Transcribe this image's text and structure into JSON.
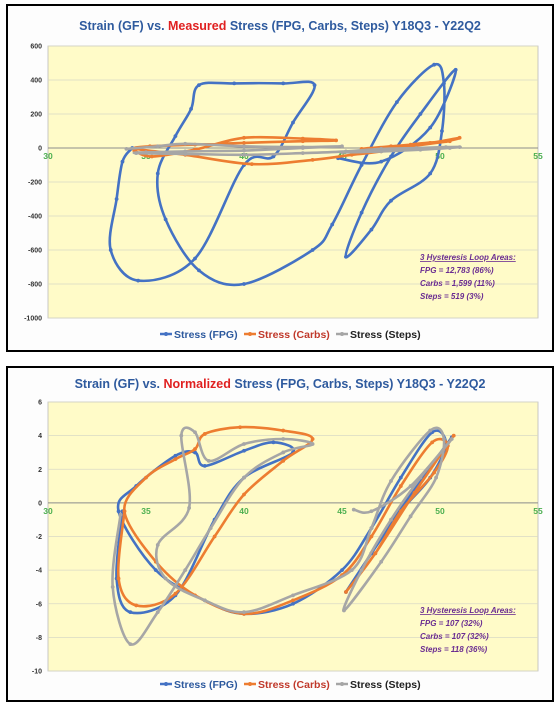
{
  "chart_data": [
    {
      "type": "line",
      "title_parts": [
        "Strain (GF) vs. ",
        "Measured",
        " Stress (FPG, Carbs, Steps)  Y18Q3 - Y22Q2"
      ],
      "xlim": [
        30,
        55
      ],
      "ylim": [
        -1000,
        600
      ],
      "x_ticks": [
        30,
        35,
        40,
        45,
        50,
        55
      ],
      "y_ticks": [
        600,
        400,
        200,
        0,
        -200,
        -400,
        -600,
        -800,
        -1000
      ],
      "plot_background": "#fffbc8",
      "grid": true,
      "legend_position": "bottom",
      "series": [
        {
          "name": "Stress (FPG)",
          "color": "#4472c4",
          "points": [
            [
              34.3,
              0
            ],
            [
              33.8,
              -80
            ],
            [
              33.5,
              -300
            ],
            [
              33.2,
              -600
            ],
            [
              34.6,
              -780
            ],
            [
              37.5,
              -650
            ],
            [
              40,
              -100
            ],
            [
              41.5,
              -50
            ],
            [
              42.5,
              150
            ],
            [
              43.6,
              370
            ],
            [
              42,
              380
            ],
            [
              39.5,
              380
            ],
            [
              37.7,
              370
            ],
            [
              37.3,
              230
            ],
            [
              36.5,
              70
            ],
            [
              35.6,
              -150
            ],
            [
              36,
              -420
            ],
            [
              37.7,
              -720
            ],
            [
              40,
              -800
            ],
            [
              43.5,
              -600
            ],
            [
              44.5,
              -450
            ],
            [
              46,
              -100
            ],
            [
              47.8,
              270
            ],
            [
              49.7,
              490
            ],
            [
              50.2,
              380
            ],
            [
              50.1,
              100
            ],
            [
              49.5,
              -150
            ],
            [
              47.5,
              -310
            ],
            [
              46.5,
              -480
            ],
            [
              45.2,
              -640
            ],
            [
              46,
              -380
            ],
            [
              47.5,
              -50
            ],
            [
              49,
              200
            ],
            [
              50.8,
              460
            ],
            [
              49.5,
              120
            ],
            [
              47,
              -80
            ],
            [
              44.8,
              -60
            ]
          ]
        },
        {
          "name": "Stress (Carbs)",
          "color": "#ed7d31",
          "points": [
            [
              34.4,
              -15
            ],
            [
              35.3,
              -50
            ],
            [
              37.5,
              -10
            ],
            [
              40,
              60
            ],
            [
              43,
              55
            ],
            [
              44.7,
              45
            ],
            [
              43,
              40
            ],
            [
              40,
              30
            ],
            [
              37.5,
              20
            ],
            [
              35.2,
              10
            ],
            [
              34.5,
              -5
            ],
            [
              37,
              -40
            ],
            [
              40.4,
              -95
            ],
            [
              43.5,
              -70
            ],
            [
              45.5,
              -40
            ],
            [
              47,
              -20
            ],
            [
              48.5,
              20
            ],
            [
              50.3,
              40
            ],
            [
              51,
              60
            ],
            [
              49.5,
              30
            ],
            [
              47.5,
              10
            ],
            [
              46,
              -5
            ],
            [
              48,
              5
            ],
            [
              50.5,
              40
            ]
          ]
        },
        {
          "name": "Stress (Steps)",
          "color": "#a6a6a6",
          "points": [
            [
              34,
              -5
            ],
            [
              35.6,
              10
            ],
            [
              37,
              25
            ],
            [
              40,
              10
            ],
            [
              43,
              5
            ],
            [
              45,
              10
            ],
            [
              43,
              0
            ],
            [
              40,
              -15
            ],
            [
              37,
              -20
            ],
            [
              35,
              -25
            ],
            [
              34.5,
              -30
            ],
            [
              37,
              -35
            ],
            [
              40,
              -40
            ],
            [
              43,
              -30
            ],
            [
              45.2,
              -20
            ],
            [
              47,
              -5
            ],
            [
              48.8,
              0
            ],
            [
              50.3,
              5
            ],
            [
              51,
              5
            ],
            [
              49,
              -10
            ],
            [
              47,
              -20
            ],
            [
              45,
              -25
            ],
            [
              46.5,
              -15
            ],
            [
              48.5,
              -5
            ],
            [
              50.5,
              0
            ]
          ]
        }
      ],
      "annotation": {
        "header": "3 Hysteresis Loop Areas:",
        "lines": [
          "FPG = 12,783 (86%)",
          "Carbs = 1,599 (11%)",
          "Steps = 519 (3%)"
        ]
      }
    },
    {
      "type": "line",
      "title_parts": [
        "Strain (GF) vs. ",
        "Normalized",
        " Stress (FPG, Carbs, Steps)  Y18Q3 - Y22Q2"
      ],
      "xlim": [
        30,
        55
      ],
      "ylim": [
        -10,
        6
      ],
      "x_ticks": [
        30,
        35,
        40,
        45,
        50,
        55
      ],
      "y_ticks": [
        6,
        4,
        2,
        0,
        -2,
        -4,
        -6,
        -8,
        -10
      ],
      "plot_background": "#fffbc8",
      "grid": true,
      "legend_position": "bottom",
      "series": [
        {
          "name": "Stress (FPG)",
          "color": "#4472c4",
          "points": [
            [
              33.8,
              -0.5
            ],
            [
              33.5,
              -4.5
            ],
            [
              34.2,
              -6.5
            ],
            [
              36.5,
              -5.5
            ],
            [
              38.5,
              -1
            ],
            [
              40,
              1.5
            ],
            [
              42.5,
              3
            ],
            [
              41.5,
              3.6
            ],
            [
              40,
              3.1
            ],
            [
              38,
              2.2
            ],
            [
              37.5,
              3
            ],
            [
              36.5,
              2.8
            ],
            [
              34.5,
              1
            ],
            [
              33.6,
              -0.5
            ],
            [
              35.5,
              -4
            ],
            [
              38,
              -5.8
            ],
            [
              40,
              -6.6
            ],
            [
              42.5,
              -6
            ],
            [
              45,
              -4
            ],
            [
              46.5,
              -1.5
            ],
            [
              48,
              1.5
            ],
            [
              49.6,
              4.2
            ],
            [
              50.3,
              3.5
            ],
            [
              49.5,
              1.5
            ],
            [
              48,
              -0.5
            ],
            [
              46.5,
              -3
            ],
            [
              45.2,
              -5.3
            ],
            [
              46.5,
              -3
            ],
            [
              48.5,
              0.5
            ],
            [
              50.6,
              3.9
            ]
          ]
        },
        {
          "name": "Stress (Carbs)",
          "color": "#ed7d31",
          "points": [
            [
              33.9,
              -0.5
            ],
            [
              33.6,
              -4.5
            ],
            [
              34.5,
              -6.1
            ],
            [
              36.5,
              -5.4
            ],
            [
              38.5,
              -2
            ],
            [
              40,
              0.5
            ],
            [
              42,
              2.5
            ],
            [
              43.5,
              3.8
            ],
            [
              42,
              4.3
            ],
            [
              39.8,
              4.5
            ],
            [
              38,
              4.1
            ],
            [
              37.5,
              3.2
            ],
            [
              36.5,
              2.6
            ],
            [
              35,
              1.5
            ],
            [
              33.9,
              -0.5
            ],
            [
              35.5,
              -3.5
            ],
            [
              37.5,
              -5.5
            ],
            [
              40,
              -6.6
            ],
            [
              42.5,
              -5.8
            ],
            [
              45,
              -4.3
            ],
            [
              46.5,
              -2
            ],
            [
              48,
              1
            ],
            [
              49.6,
              3.6
            ],
            [
              50.4,
              3.4
            ],
            [
              49.7,
              1.8
            ],
            [
              48,
              -0.5
            ],
            [
              46.7,
              -3
            ],
            [
              45.2,
              -5.3
            ],
            [
              46.7,
              -3
            ],
            [
              48.7,
              0.6
            ],
            [
              50.7,
              4
            ]
          ]
        },
        {
          "name": "Stress (Steps)",
          "color": "#a6a6a6",
          "points": [
            [
              33.7,
              -0.7
            ],
            [
              33.3,
              -5
            ],
            [
              34.2,
              -8.4
            ],
            [
              35.6,
              -6.5
            ],
            [
              37,
              -4
            ],
            [
              38.3,
              -1.5
            ],
            [
              40,
              1.5
            ],
            [
              42,
              3
            ],
            [
              43.5,
              3.5
            ],
            [
              42,
              3.8
            ],
            [
              40,
              3.5
            ],
            [
              38.2,
              2.5
            ],
            [
              37.5,
              4.2
            ],
            [
              36.8,
              4
            ],
            [
              37.2,
              -0.3
            ],
            [
              35.6,
              -2.5
            ],
            [
              36,
              -4.5
            ],
            [
              38,
              -5.8
            ],
            [
              40,
              -6.5
            ],
            [
              42.5,
              -5.5
            ],
            [
              45.5,
              -4
            ],
            [
              46.5,
              -1.5
            ],
            [
              47.5,
              1.3
            ],
            [
              49.5,
              4.3
            ],
            [
              50.2,
              3.8
            ],
            [
              49.8,
              1.5
            ],
            [
              48.5,
              -0.8
            ],
            [
              47,
              -3.5
            ],
            [
              45.1,
              -6.4
            ],
            [
              46,
              -4
            ],
            [
              47.5,
              -1
            ],
            [
              49,
              1.5
            ],
            [
              50.6,
              3.8
            ],
            [
              48.5,
              1
            ],
            [
              46.5,
              -0.5
            ],
            [
              45.6,
              -0.4
            ]
          ]
        }
      ],
      "annotation": {
        "header": "3 Hysteresis Loop Areas:",
        "lines": [
          "FPG = 107 (32%)",
          "Carbs = 107 (32%)",
          "Steps = 118 (36%)"
        ]
      }
    }
  ]
}
